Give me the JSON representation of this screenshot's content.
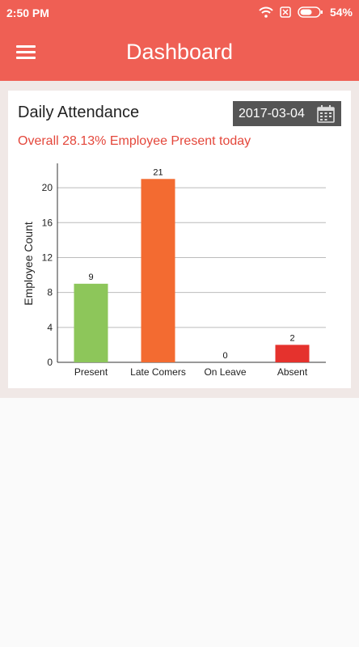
{
  "status_bar": {
    "time": "2:50 PM",
    "battery": "54%"
  },
  "app_bar": {
    "title": "Dashboard",
    "menu_icon": "hamburger-menu-icon"
  },
  "card": {
    "title": "Daily Attendance",
    "date": "2017-03-04",
    "calendar_icon": "calendar-icon",
    "summary": "Overall 28.13% Employee Present today"
  },
  "chart_data": {
    "type": "bar",
    "categories": [
      "Present",
      "Late Comers",
      "On Leave",
      "Absent"
    ],
    "values": [
      9,
      21,
      0,
      2
    ],
    "bar_colors": [
      "#8dc65a",
      "#f36b31",
      "#f36b31",
      "#e5322d"
    ],
    "ylabel": "Employee Count",
    "xlabel": "",
    "yticks": [
      0,
      4,
      8,
      12,
      16,
      20
    ],
    "ylim": [
      0,
      22.6
    ],
    "grid": true
  }
}
